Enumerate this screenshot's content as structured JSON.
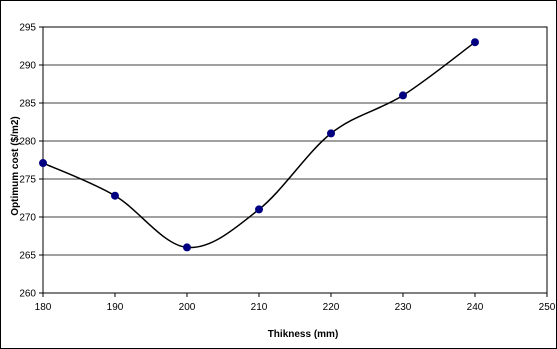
{
  "chart_data": {
    "type": "line",
    "xlabel": "Thikness (mm)",
    "ylabel": "Optimum cost ($/m2)",
    "xlim": [
      180,
      250
    ],
    "ylim": [
      260,
      295
    ],
    "x_ticks": [
      "180",
      "190",
      "200",
      "210",
      "220",
      "230",
      "240",
      "250"
    ],
    "y_ticks": [
      "260",
      "265",
      "270",
      "275",
      "280",
      "285",
      "290",
      "295"
    ],
    "grid": "horizontal",
    "colors": {
      "marker": "#000080",
      "line": "#000000",
      "grid": "#000000"
    },
    "series": [
      {
        "x": [
          180,
          190,
          200,
          210,
          220,
          230,
          240
        ],
        "y": [
          277.1,
          272.8,
          266.0,
          271.0,
          281.0,
          286.0,
          293.0
        ]
      }
    ]
  }
}
